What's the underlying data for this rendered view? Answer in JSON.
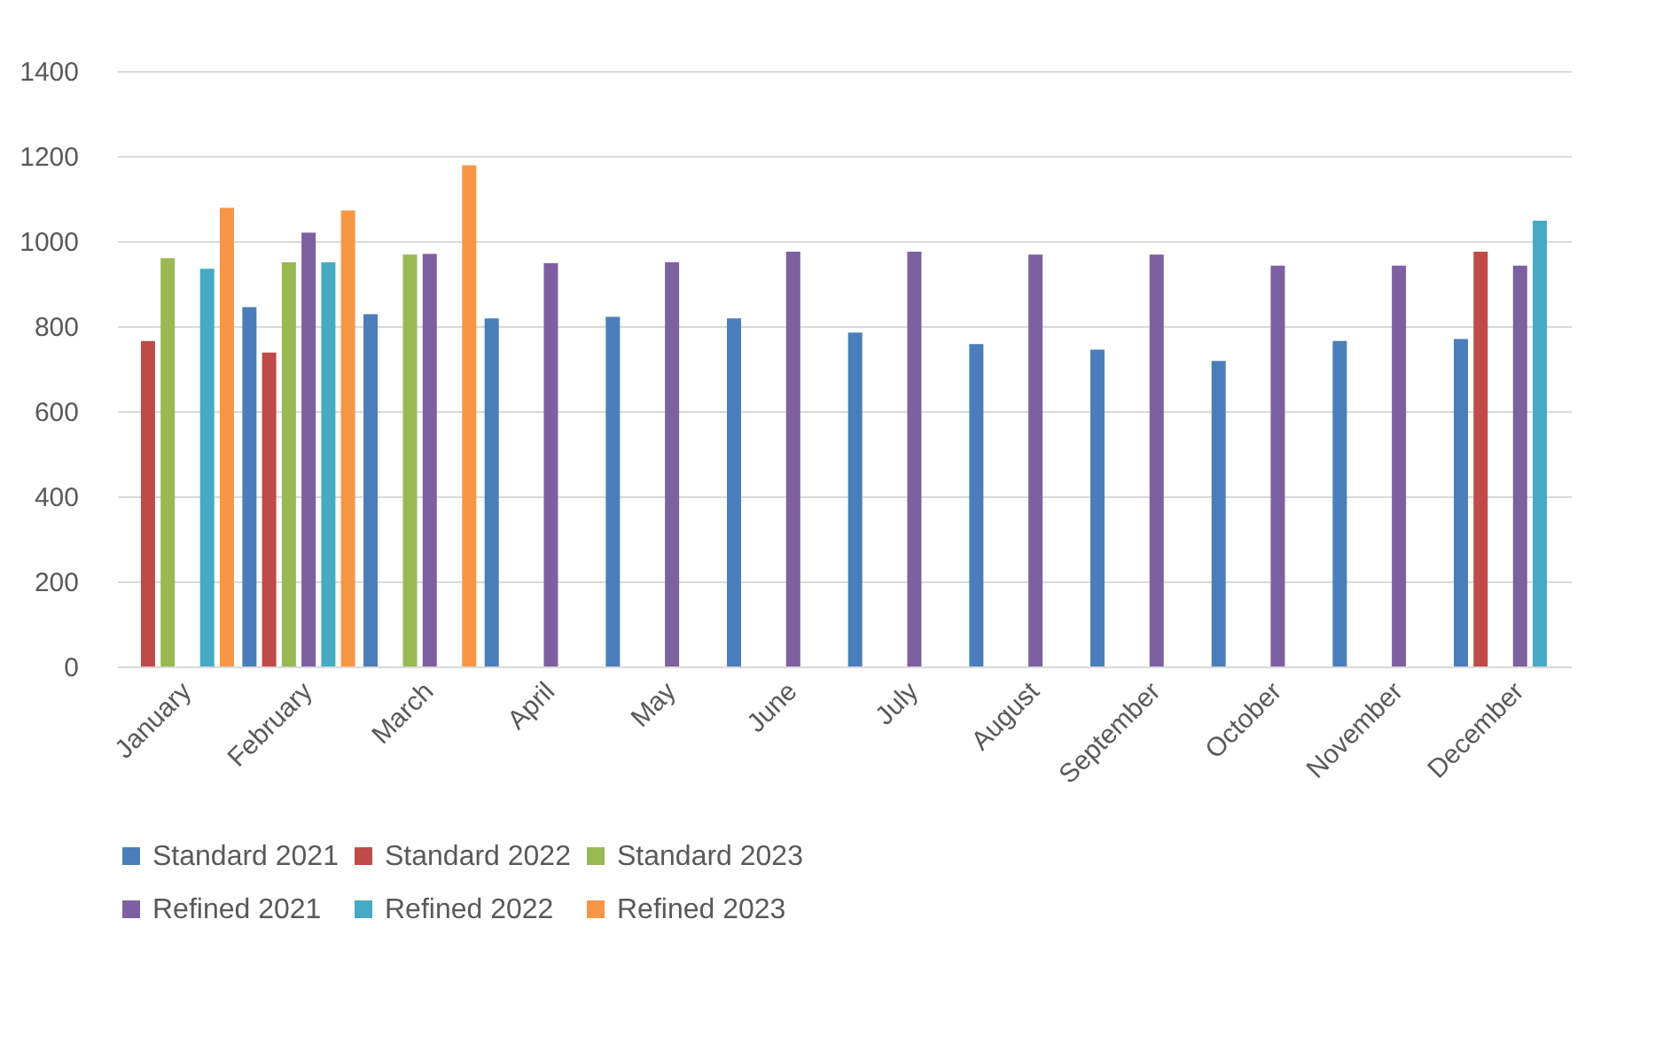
{
  "chart_data": {
    "type": "bar",
    "categories": [
      "January",
      "February",
      "March",
      "April",
      "May",
      "June",
      "July",
      "August",
      "September",
      "October",
      "November",
      "December"
    ],
    "series": [
      {
        "name": "Standard 2021",
        "color": "#4a7ebb",
        "values": [
          null,
          845,
          828,
          818,
          822,
          818,
          785,
          758,
          745,
          718,
          765,
          770
        ]
      },
      {
        "name": "Standard 2022",
        "color": "#be4b48",
        "values": [
          765,
          738,
          null,
          null,
          null,
          null,
          null,
          null,
          null,
          null,
          null,
          975
        ]
      },
      {
        "name": "Standard 2023",
        "color": "#98b954",
        "values": [
          960,
          950,
          968,
          null,
          null,
          null,
          null,
          null,
          null,
          null,
          null,
          null
        ]
      },
      {
        "name": "Refined 2021",
        "color": "#7d60a0",
        "values": [
          null,
          1020,
          970,
          948,
          950,
          975,
          975,
          968,
          968,
          942,
          942,
          942
        ]
      },
      {
        "name": "Refined 2022",
        "color": "#46aac5",
        "values": [
          935,
          950,
          null,
          null,
          null,
          null,
          null,
          null,
          null,
          null,
          null,
          1048
        ]
      },
      {
        "name": "Refined 2023",
        "color": "#f79646",
        "values": [
          1078,
          1072,
          1178,
          null,
          null,
          null,
          null,
          null,
          null,
          null,
          null,
          null
        ]
      }
    ],
    "ylim": [
      0,
      1400
    ],
    "yticks": [
      0,
      200,
      400,
      600,
      800,
      1000,
      1200,
      1400
    ],
    "grid": "y",
    "legend": "bottom"
  }
}
